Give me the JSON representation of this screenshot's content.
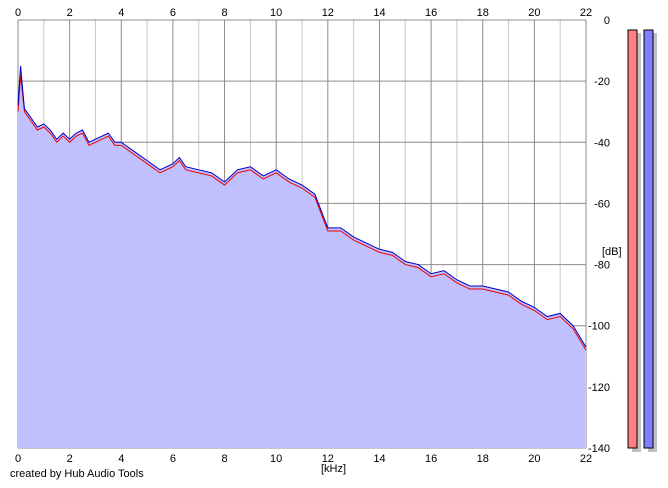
{
  "footer": {
    "credit": "created by Hub Audio Tools"
  },
  "chart_data": {
    "type": "area",
    "title": "",
    "xlabel": "[kHz]",
    "ylabel": "[dB]",
    "xlim": [
      0,
      22
    ],
    "ylim": [
      -140,
      0
    ],
    "x_ticks": [
      0,
      2,
      4,
      6,
      8,
      10,
      12,
      14,
      16,
      18,
      20,
      22
    ],
    "y_ticks": [
      0,
      -20,
      -40,
      -60,
      -80,
      -100,
      -120,
      -140
    ],
    "grid": true,
    "colors": {
      "fill": "#c0c0ff",
      "left_channel": "#ee0000",
      "right_channel": "#0000c0",
      "grid_major": "#8c8c8c",
      "grid_minor": "#c8c8c8",
      "meter_left": "#ff8080",
      "meter_right": "#8080ff",
      "meter_shadow": "#c0c0c0"
    },
    "series": [
      {
        "key": "left",
        "x": [
          0.0,
          0.1,
          0.15,
          0.25,
          0.5,
          0.75,
          1.0,
          1.25,
          1.5,
          1.75,
          2.0,
          2.25,
          2.5,
          2.75,
          3.0,
          3.25,
          3.5,
          3.75,
          4.0,
          4.5,
          5.0,
          5.5,
          6.0,
          6.25,
          6.5,
          7.0,
          7.5,
          8.0,
          8.5,
          9.0,
          9.5,
          10.0,
          10.5,
          11.0,
          11.5,
          12.0,
          12.5,
          13.0,
          13.5,
          14.0,
          14.5,
          15.0,
          15.5,
          16.0,
          16.5,
          17.0,
          17.5,
          18.0,
          18.5,
          19.0,
          19.5,
          20.0,
          20.5,
          21.0,
          21.5,
          22.0
        ],
        "values": [
          -30,
          -18,
          -22,
          -30,
          -33,
          -36,
          -35,
          -37,
          -40,
          -38,
          -40,
          -38,
          -37,
          -41,
          -40,
          -39,
          -38,
          -41,
          -41,
          -44,
          -47,
          -50,
          -48,
          -46,
          -49,
          -50,
          -51,
          -54,
          -50,
          -49,
          -52,
          -50,
          -53,
          -55,
          -58,
          -69,
          -69,
          -72,
          -74,
          -76,
          -77,
          -80,
          -81,
          -84,
          -83,
          -86,
          -88,
          -88,
          -89,
          -90,
          -93,
          -95,
          -98,
          -97,
          -101,
          -108
        ]
      },
      {
        "key": "right",
        "x": [
          0.0,
          0.1,
          0.15,
          0.25,
          0.5,
          0.75,
          1.0,
          1.25,
          1.5,
          1.75,
          2.0,
          2.25,
          2.5,
          2.75,
          3.0,
          3.25,
          3.5,
          3.75,
          4.0,
          4.5,
          5.0,
          5.5,
          6.0,
          6.25,
          6.5,
          7.0,
          7.5,
          8.0,
          8.5,
          9.0,
          9.5,
          10.0,
          10.5,
          11.0,
          11.5,
          12.0,
          12.5,
          13.0,
          13.5,
          14.0,
          14.5,
          15.0,
          15.5,
          16.0,
          16.5,
          17.0,
          17.5,
          18.0,
          18.5,
          19.0,
          19.5,
          20.0,
          20.5,
          21.0,
          21.5,
          22.0
        ],
        "values": [
          -28,
          -15,
          -20,
          -29,
          -32,
          -35,
          -34,
          -36,
          -39,
          -37,
          -39,
          -37,
          -36,
          -40,
          -39,
          -38,
          -37,
          -40,
          -40,
          -43,
          -46,
          -49,
          -47,
          -45,
          -48,
          -49,
          -50,
          -53,
          -49,
          -48,
          -51,
          -49,
          -52,
          -54,
          -57,
          -68,
          -68,
          -71,
          -73,
          -75,
          -76,
          -79,
          -80,
          -83,
          -82,
          -85,
          -87,
          -87,
          -88,
          -89,
          -92,
          -94,
          -97,
          -96,
          -100,
          -107
        ]
      }
    ]
  }
}
